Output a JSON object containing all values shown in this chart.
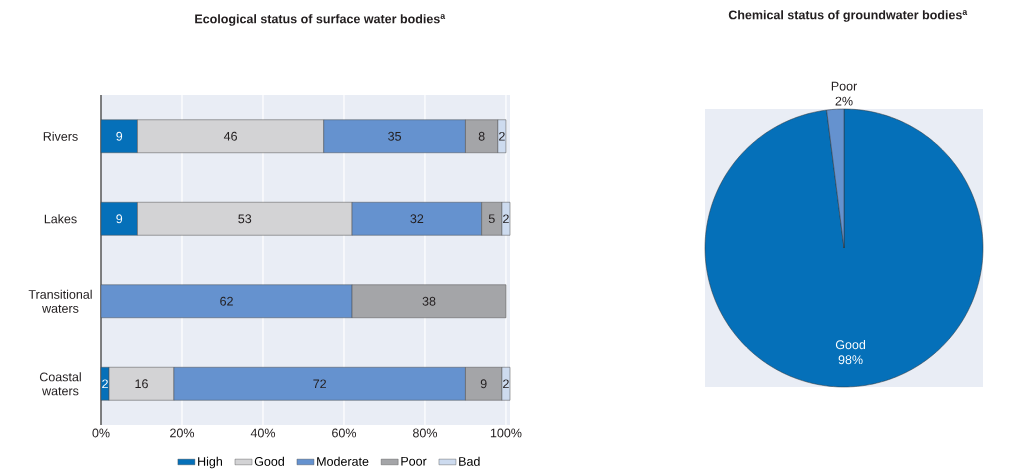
{
  "chart_data": [
    {
      "type": "bar",
      "orientation": "horizontal",
      "stacked": true,
      "title": "Ecological status of surface water bodies$^{a}$",
      "categories": [
        "Rivers",
        "Lakes",
        "Transitional waters",
        "Coastal waters"
      ],
      "series": [
        {
          "name": "High",
          "color": "#0570b9",
          "values": [
            9,
            9,
            null,
            2
          ]
        },
        {
          "name": "Good",
          "color": "#d3d3d5",
          "values": [
            46,
            53,
            null,
            16
          ]
        },
        {
          "name": "Moderate",
          "color": "#6592cf",
          "values": [
            35,
            32,
            62,
            72
          ]
        },
        {
          "name": "Poor",
          "color": "#a4a5a8",
          "values": [
            8,
            5,
            38,
            9
          ]
        },
        {
          "name": "Bad",
          "color": "#cddbef",
          "values": [
            2,
            2,
            null,
            2
          ]
        }
      ],
      "xlim": [
        0,
        101
      ],
      "xticks": [
        {
          "value": 0,
          "label": "0%"
        },
        {
          "value": 20,
          "label": "20%"
        },
        {
          "value": 40,
          "label": "40%"
        },
        {
          "value": 60,
          "label": "60%"
        },
        {
          "value": 80,
          "label": "80%"
        },
        {
          "value": 100,
          "label": "100%"
        }
      ],
      "grid": "x",
      "legend": "bottom",
      "data_labels": true
    },
    {
      "type": "pie",
      "title": "Chemical status of groundwater bodies$^{a}$",
      "categories": [
        "Good",
        "Poor"
      ],
      "values": [
        98,
        2
      ],
      "colors": [
        "#0570b9",
        "#6592cf"
      ],
      "value_labels": [
        "98%",
        "2%"
      ]
    }
  ]
}
